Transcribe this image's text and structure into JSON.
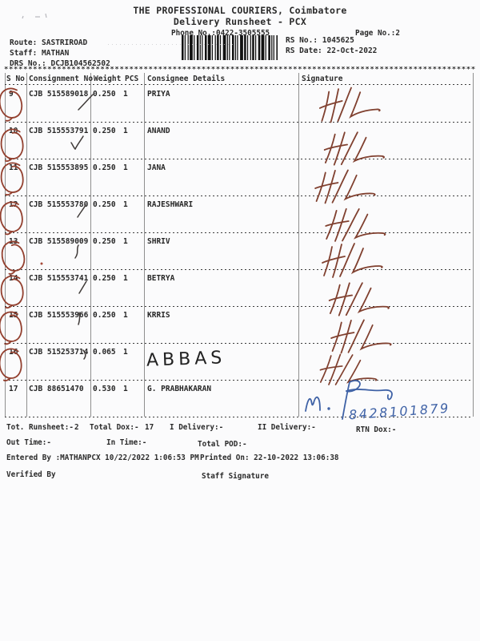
{
  "header": {
    "company": "THE PROFESSIONAL COURIERS, Coimbatore",
    "doc_title": "Delivery Runsheet - PCX",
    "phone": "Phone No.:0422-3505555",
    "page_no": "Page No.:2",
    "route": "Route: SASTRIROAD",
    "staff": "Staff: MATHAN",
    "drs_no": "DRS No.: DCJB104562502",
    "rs_no": "RS No.: 1045625",
    "rs_date": "RS Date: 22-Oct-2022"
  },
  "table": {
    "headers": {
      "s_no": "S No",
      "consignment": "Consignment No",
      "weight": "Weight",
      "pcs": "PCS",
      "consignee": "Consignee Details",
      "signature": "Signature"
    },
    "rows": [
      {
        "s_no": "9",
        "consignment": "CJB 515589018",
        "weight": "0.250",
        "pcs": "1",
        "consignee": "PRIYA",
        "signature_mark": "H/L",
        "circled": true
      },
      {
        "s_no": "10",
        "consignment": "CJB 515553791",
        "weight": "0.250",
        "pcs": "1",
        "consignee": "ANAND",
        "signature_mark": "H/L",
        "circled": true
      },
      {
        "s_no": "11",
        "consignment": "CJB 515553895",
        "weight": "0.250",
        "pcs": "1",
        "consignee": "JANA",
        "signature_mark": "H/L",
        "circled": true
      },
      {
        "s_no": "12",
        "consignment": "CJB 515553780",
        "weight": "0.250",
        "pcs": "1",
        "consignee": "RAJESHWARI",
        "signature_mark": "H/L",
        "circled": true
      },
      {
        "s_no": "13",
        "consignment": "CJB 515589009",
        "weight": "0.250",
        "pcs": "1",
        "consignee": "SHRIV",
        "signature_mark": "H/L",
        "circled": true
      },
      {
        "s_no": "14",
        "consignment": "CJB 515553741",
        "weight": "0.250",
        "pcs": "1",
        "consignee": "BETRYA",
        "signature_mark": "H/L",
        "circled": true
      },
      {
        "s_no": "15",
        "consignment": "CJB 515553966",
        "weight": "0.250",
        "pcs": "1",
        "consignee": "KRRIS",
        "signature_mark": "H/L",
        "circled": true
      },
      {
        "s_no": "16",
        "consignment": "CJB 515253714",
        "weight": "0.065",
        "pcs": "1",
        "consignee": "",
        "consignee_handwritten": "ABBAS",
        "signature_mark": "H/L",
        "circled": true
      },
      {
        "s_no": "17",
        "consignment": "CJB 88651470",
        "weight": "0.530",
        "pcs": "1",
        "consignee": "G. PRABHAKARAN",
        "signature_mark": "M. R",
        "phone_handwritten": "8428101879",
        "circled": false
      }
    ]
  },
  "footer": {
    "tot_runsheet_label": "Tot. Runsheet:-",
    "tot_runsheet_value": "2",
    "total_dox_label": "Total Dox:-",
    "total_dox_value": "17",
    "i_delivery_label": "I Delivery:-",
    "ii_delivery_label": "II Delivery:-",
    "rtn_dox_label": "RTN Dox:-",
    "out_time_label": "Out Time:-",
    "in_time_label": "In Time:-",
    "total_pod_label": "Total POD:-",
    "entered_by": "Entered By :MATHANPCX 10/22/2022 1:06:53 PM",
    "printed_on": "Printed On: 22-10-2022 13:06:38",
    "verified_by": "Verified By",
    "staff_signature": "Staff Signature"
  },
  "colors": {
    "ink_red": "#8a4236",
    "ink_blue": "#3f62a6",
    "print": "#2a2a2a"
  }
}
